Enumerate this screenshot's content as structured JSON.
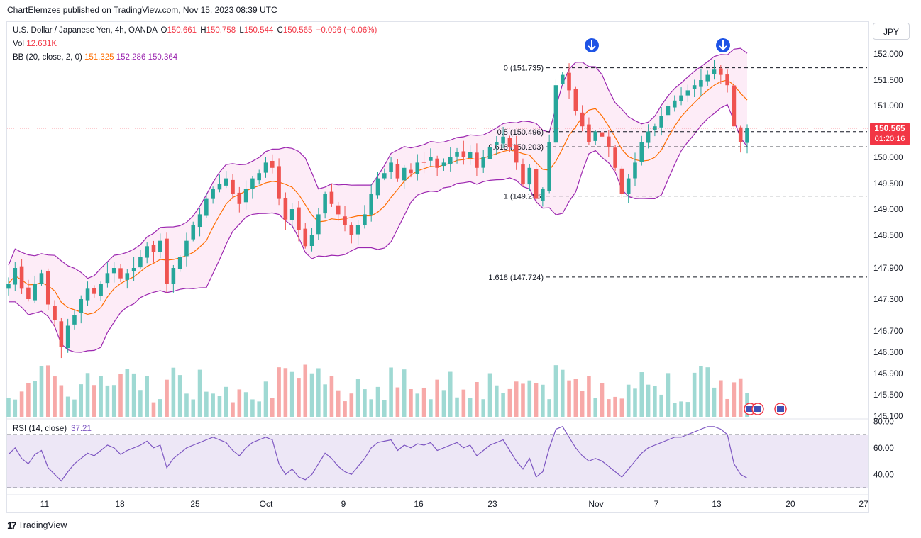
{
  "header": {
    "publisher_text": "ChartElemzes published on TradingView.com, Nov 15, 2023 08:39 UTC"
  },
  "legend": {
    "symbol": "U.S. Dollar / Japanese Yen, 4h, OANDA",
    "o_label": "O",
    "o_value": "150.661",
    "h_label": "H",
    "h_value": "150.758",
    "l_label": "L",
    "l_value": "150.544",
    "c_label": "C",
    "c_value": "150.565",
    "change": "−0.096 (−0.06%)",
    "vol_label": "Vol",
    "vol_value": "12.631K",
    "bb_label": "BB (20, close, 2, 0)",
    "bb_basis": "151.325",
    "bb_upper": "152.286",
    "bb_lower": "150.364"
  },
  "currency": "JPY",
  "price_tag": {
    "price": "150.565",
    "countdown": "01:20:16"
  },
  "rsi": {
    "label": "RSI (14, close)",
    "value": "37.21",
    "axis_ticks": [
      "80.00",
      "60.00",
      "40.00"
    ]
  },
  "footer": {
    "brand": "TradingView"
  },
  "colors": {
    "up": "#26a69a",
    "down": "#ef5350",
    "bb_band": "#9c27b0",
    "bb_basis": "#ff6d00",
    "bb_fill": "#fce4f3",
    "rsi_line": "#7e57c2",
    "rsi_fill": "#ede7f6",
    "vol_up": "#9fd9d3",
    "vol_down": "#f7a9a8",
    "last_price": "#f23645",
    "arrow": "#1e53e5"
  },
  "chart_data": {
    "type": "candlestick",
    "symbol": "USDJPY",
    "timeframe": "4h",
    "y_ticks": [
      152.0,
      151.5,
      151.0,
      150.0,
      149.5,
      149.0,
      148.5,
      147.9,
      147.3,
      146.7,
      146.3,
      145.9,
      145.5,
      145.1
    ],
    "y_tick_labels": [
      "152.000",
      "151.500",
      "151.000",
      "150.000",
      "149.500",
      "149.000",
      "148.500",
      "147.900",
      "147.300",
      "146.700",
      "146.300",
      "145.900",
      "145.500",
      "145.100"
    ],
    "x_tick_labels": [
      "11",
      "18",
      "25",
      "Oct",
      "9",
      "16",
      "23",
      "Nov",
      "7",
      "13",
      "20",
      "27"
    ],
    "last_price": 150.565,
    "fibonacci": [
      {
        "label": "0 (151.735)",
        "price": 151.735
      },
      {
        "label": "0.5 (150.496)",
        "price": 150.496
      },
      {
        "label": "0.618 (150.203)",
        "price": 150.203
      },
      {
        "label": "1 (149.256)",
        "price": 149.256
      },
      {
        "label": "1.618 (147.724)",
        "price": 147.724
      }
    ],
    "close_series": [
      147.6,
      147.9,
      147.5,
      147.3,
      147.6,
      147.8,
      147.2,
      146.9,
      146.4,
      146.8,
      147.0,
      147.3,
      147.5,
      147.4,
      147.6,
      147.8,
      147.9,
      147.7,
      147.8,
      147.9,
      148.1,
      148.3,
      148.2,
      148.4,
      147.6,
      147.9,
      148.1,
      148.4,
      148.7,
      148.9,
      149.2,
      149.4,
      149.5,
      149.6,
      149.3,
      149.1,
      149.4,
      149.6,
      149.7,
      149.9,
      149.8,
      149.2,
      148.8,
      149.0,
      148.6,
      148.3,
      148.5,
      148.9,
      149.3,
      149.1,
      148.9,
      148.7,
      148.5,
      148.7,
      148.9,
      149.3,
      149.6,
      149.7,
      149.9,
      149.6,
      149.8,
      149.7,
      149.9,
      149.9,
      150.0,
      149.8,
      149.9,
      150.0,
      150.1,
      150.0,
      150.1,
      149.8,
      150.0,
      150.2,
      150.3,
      150.4,
      150.2,
      149.9,
      149.5,
      149.8,
      149.2,
      149.4,
      150.3,
      151.4,
      151.6,
      151.3,
      150.9,
      150.6,
      150.3,
      150.5,
      150.4,
      150.2,
      149.8,
      149.3,
      149.6,
      149.9,
      150.3,
      150.5,
      150.6,
      150.8,
      151.0,
      151.1,
      151.2,
      151.3,
      151.4,
      151.5,
      151.6,
      151.7,
      151.6,
      151.4,
      150.6,
      150.3,
      150.565
    ],
    "rsi_series": [
      55,
      60,
      52,
      48,
      55,
      58,
      45,
      40,
      35,
      42,
      48,
      52,
      56,
      54,
      58,
      62,
      60,
      55,
      58,
      60,
      62,
      65,
      60,
      62,
      45,
      52,
      56,
      60,
      62,
      64,
      66,
      68,
      66,
      64,
      58,
      54,
      60,
      64,
      66,
      68,
      66,
      48,
      40,
      44,
      38,
      36,
      40,
      48,
      56,
      52,
      46,
      42,
      40,
      46,
      52,
      60,
      64,
      65,
      66,
      58,
      62,
      60,
      63,
      62,
      64,
      58,
      60,
      62,
      64,
      60,
      62,
      54,
      58,
      62,
      64,
      66,
      58,
      50,
      44,
      52,
      38,
      42,
      60,
      74,
      76,
      68,
      60,
      54,
      50,
      52,
      50,
      46,
      42,
      38,
      44,
      50,
      56,
      60,
      62,
      64,
      66,
      68,
      68,
      70,
      72,
      74,
      76,
      76,
      74,
      70,
      48,
      40,
      37.21
    ]
  }
}
